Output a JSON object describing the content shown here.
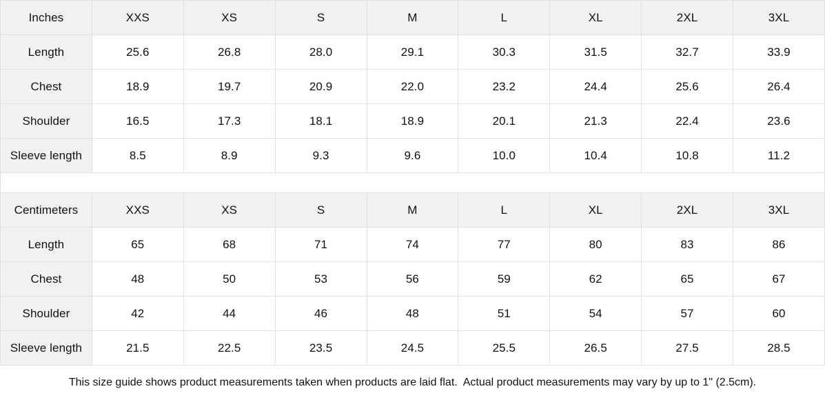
{
  "colors": {
    "header_bg": "#f1f1f1",
    "border": "#e0e0e0",
    "text": "#111111",
    "page_bg": "#ffffff"
  },
  "tables": [
    {
      "unit_label": "Inches",
      "columns": [
        "XXS",
        "XS",
        "S",
        "M",
        "L",
        "XL",
        "2XL",
        "3XL"
      ],
      "rows": [
        {
          "label": "Length",
          "values": [
            "25.6",
            "26.8",
            "28.0",
            "29.1",
            "30.3",
            "31.5",
            "32.7",
            "33.9"
          ]
        },
        {
          "label": "Chest",
          "values": [
            "18.9",
            "19.7",
            "20.9",
            "22.0",
            "23.2",
            "24.4",
            "25.6",
            "26.4"
          ]
        },
        {
          "label": "Shoulder",
          "values": [
            "16.5",
            "17.3",
            "18.1",
            "18.9",
            "20.1",
            "21.3",
            "22.4",
            "23.6"
          ]
        },
        {
          "label": "Sleeve length",
          "values": [
            "8.5",
            "8.9",
            "9.3",
            "9.6",
            "10.0",
            "10.4",
            "10.8",
            "11.2"
          ]
        }
      ]
    },
    {
      "unit_label": "Centimeters",
      "columns": [
        "XXS",
        "XS",
        "S",
        "M",
        "L",
        "XL",
        "2XL",
        "3XL"
      ],
      "rows": [
        {
          "label": "Length",
          "values": [
            "65",
            "68",
            "71",
            "74",
            "77",
            "80",
            "83",
            "86"
          ]
        },
        {
          "label": "Chest",
          "values": [
            "48",
            "50",
            "53",
            "56",
            "59",
            "62",
            "65",
            "67"
          ]
        },
        {
          "label": "Shoulder",
          "values": [
            "42",
            "44",
            "46",
            "48",
            "51",
            "54",
            "57",
            "60"
          ]
        },
        {
          "label": "Sleeve length",
          "values": [
            "21.5",
            "22.5",
            "23.5",
            "24.5",
            "25.5",
            "26.5",
            "27.5",
            "28.5"
          ]
        }
      ]
    }
  ],
  "footer": {
    "note": "This size guide shows product measurements taken when products are laid flat.  Actual product measurements may vary by up to 1\" (2.5cm)."
  }
}
